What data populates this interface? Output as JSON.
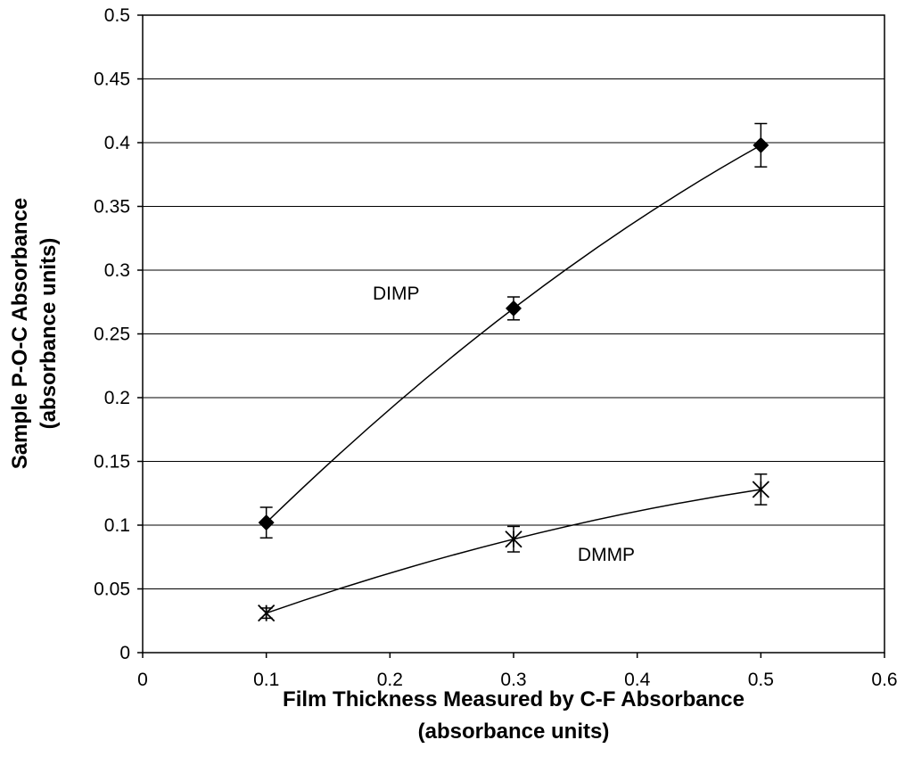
{
  "chart_data": {
    "type": "scatter",
    "xlabel": [
      "Film Thickness Measured by C-F  Absorbance",
      "(absorbance units)"
    ],
    "ylabel": [
      "Sample P-O-C Absorbance",
      "(absorbance units)"
    ],
    "xlim": [
      0,
      0.6
    ],
    "ylim": [
      0,
      0.5
    ],
    "x_ticks": [
      "0",
      "0.1",
      "0.2",
      "0.3",
      "0.4",
      "0.5",
      "0.6"
    ],
    "y_ticks": [
      "0",
      "0.05",
      "0.1",
      "0.15",
      "0.2",
      "0.25",
      "0.3",
      "0.35",
      "0.4",
      "0.45",
      "0.5"
    ],
    "grid": "horizontal",
    "legend": "none",
    "series": [
      {
        "name": "DIMP",
        "marker": "diamond",
        "color": "#000000",
        "x": [
          0.1,
          0.3,
          0.5
        ],
        "y": [
          0.102,
          0.27,
          0.398
        ],
        "error": [
          0.012,
          0.009,
          0.017
        ]
      },
      {
        "name": "DMMP",
        "marker": "asterisk",
        "color": "#000000",
        "x": [
          0.1,
          0.3,
          0.5
        ],
        "y": [
          0.031,
          0.089,
          0.128
        ],
        "error": [
          0.004,
          0.01,
          0.012
        ]
      }
    ]
  }
}
